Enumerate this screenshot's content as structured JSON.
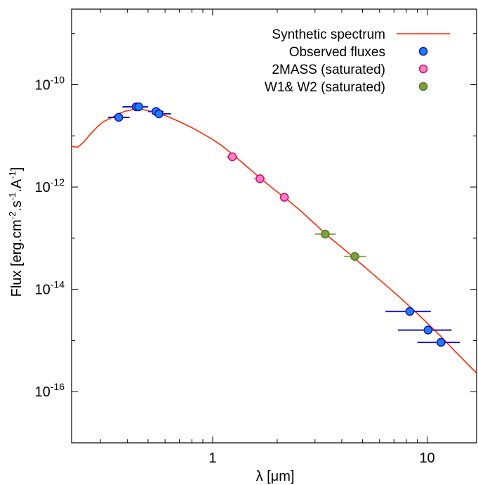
{
  "chart_data": {
    "type": "scatter",
    "xlabel": "λ [μm]",
    "ylabel": "Flux [erg.cm-2.s-1.A-1]",
    "xscale": "log",
    "yscale": "log",
    "xlim": [
      0.22,
      17
    ],
    "ylim": [
      1e-17,
      3e-09
    ],
    "x_ticks": [
      1,
      10
    ],
    "y_ticks": [
      1e-16,
      1e-14,
      1e-12,
      1e-10
    ],
    "y_tick_labels": [
      "10-16",
      "10-14",
      "10-12",
      "10-10"
    ],
    "x_tick_labels": [
      "1",
      "10"
    ],
    "grid": false,
    "legend_position": "top-right",
    "legend": [
      {
        "label": "Synthetic spectrum",
        "marker": "line",
        "color": "#ff2a00"
      },
      {
        "label": "Observed fluxes",
        "marker": "circle",
        "color": "#1e7dff",
        "edge": "#1a1aa8"
      },
      {
        "label": "2MASS (saturated)",
        "marker": "circle",
        "color": "#ff7fbf",
        "edge": "#c0187a"
      },
      {
        "label": "W1& W2 (saturated)",
        "marker": "circle",
        "color": "#7da040",
        "edge": "#5a7a28"
      }
    ],
    "series": [
      {
        "name": "Synthetic spectrum",
        "type": "line",
        "color": "#ff2a00",
        "points": [
          [
            0.22,
            6.2e-12
          ],
          [
            0.235,
            6e-12
          ],
          [
            0.25,
            7.5e-12
          ],
          [
            0.27,
            1.1e-11
          ],
          [
            0.29,
            1.5e-11
          ],
          [
            0.31,
            1.9e-11
          ],
          [
            0.34,
            2.3e-11
          ],
          [
            0.37,
            2.8e-11
          ],
          [
            0.4,
            3.1e-11
          ],
          [
            0.43,
            3.3e-11
          ],
          [
            0.46,
            3.35e-11
          ],
          [
            0.5,
            3.1e-11
          ],
          [
            0.55,
            2.8e-11
          ],
          [
            0.6,
            2.5e-11
          ],
          [
            0.7,
            1.9e-11
          ],
          [
            0.8,
            1.45e-11
          ],
          [
            0.9,
            1.1e-11
          ],
          [
            1.0,
            8.5e-12
          ],
          [
            1.1,
            6.5e-12
          ],
          [
            1.25,
            4.2e-12
          ],
          [
            1.4,
            2.8e-12
          ],
          [
            1.65,
            1.55e-12
          ],
          [
            1.9,
            9.5e-13
          ],
          [
            2.16,
            6.3e-13
          ],
          [
            2.5,
            3.8e-13
          ],
          [
            3.0,
            1.9e-13
          ],
          [
            3.4,
            1.15e-13
          ],
          [
            4.0,
            6.6e-14
          ],
          [
            4.6,
            4e-14
          ],
          [
            5.5,
            2.1e-14
          ],
          [
            6.5,
            1.15e-14
          ],
          [
            7.5,
            6.8e-15
          ],
          [
            8.6,
            4e-15
          ],
          [
            10.0,
            2.2e-15
          ],
          [
            11.6,
            1.2e-15
          ],
          [
            13.0,
            7.2e-16
          ],
          [
            15.0,
            3.9e-16
          ],
          [
            17.0,
            2.3e-16
          ]
        ]
      },
      {
        "name": "Observed fluxes",
        "type": "scatter",
        "color": "#1e7dff",
        "edge": "#1a1aa8",
        "errbar_color": "#1a1acc",
        "points": [
          {
            "x": 0.365,
            "y": 2.3e-11,
            "xlo": 0.325,
            "xhi": 0.41
          },
          {
            "x": 0.44,
            "y": 3.7e-11,
            "xlo": 0.38,
            "xhi": 0.5
          },
          {
            "x": 0.452,
            "y": 3.7e-11,
            "xlo": 0.41,
            "xhi": 0.495
          },
          {
            "x": 0.545,
            "y": 3e-11,
            "xlo": 0.5,
            "xhi": 0.59
          },
          {
            "x": 0.562,
            "y": 2.7e-11,
            "xlo": 0.52,
            "xhi": 0.64
          },
          {
            "x": 8.3,
            "y": 3.7e-15,
            "xlo": 6.4,
            "xhi": 10.4
          },
          {
            "x": 10.1,
            "y": 1.6e-15,
            "xlo": 7.3,
            "xhi": 13.0
          },
          {
            "x": 11.6,
            "y": 9.2e-16,
            "xlo": 9.0,
            "xhi": 14.2
          }
        ]
      },
      {
        "name": "2MASS (saturated)",
        "type": "scatter",
        "color": "#ff7fbf",
        "edge": "#c0187a",
        "errbar_color": "#ff8fd0",
        "points": [
          {
            "x": 1.235,
            "y": 3.9e-12,
            "xlo": 1.16,
            "xhi": 1.31
          },
          {
            "x": 1.662,
            "y": 1.45e-12,
            "xlo": 1.55,
            "xhi": 1.77
          },
          {
            "x": 2.159,
            "y": 6.3e-13,
            "xlo": 2.05,
            "xhi": 2.27
          }
        ]
      },
      {
        "name": "W1& W2 (saturated)",
        "type": "scatter",
        "color": "#7da040",
        "edge": "#5a7a28",
        "errbar_color": "#8aa850",
        "points": [
          {
            "x": 3.35,
            "y": 1.2e-13,
            "xlo": 3.0,
            "xhi": 3.75
          },
          {
            "x": 4.6,
            "y": 4.4e-14,
            "xlo": 4.1,
            "xhi": 5.2
          }
        ]
      }
    ]
  }
}
